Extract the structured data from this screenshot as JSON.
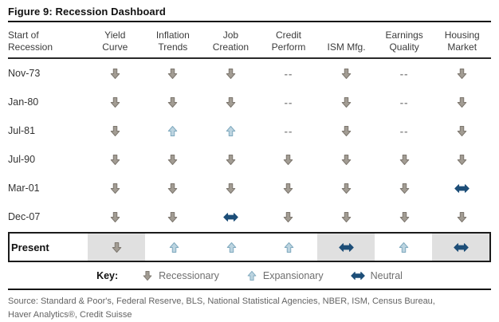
{
  "figure": {
    "title": "Figure 9: Recession Dashboard"
  },
  "table": {
    "columns": [
      {
        "line1": "Start of",
        "line2": "Recession"
      },
      {
        "line1": "Yield",
        "line2": "Curve"
      },
      {
        "line1": "Inflation",
        "line2": "Trends"
      },
      {
        "line1": "Job",
        "line2": "Creation"
      },
      {
        "line1": "Credit",
        "line2": "Perform"
      },
      {
        "line1": "",
        "line2": "ISM Mfg."
      },
      {
        "line1": "Earnings",
        "line2": "Quality"
      },
      {
        "line1": "Housing",
        "line2": "Market"
      }
    ],
    "dash_text": "--",
    "rows": [
      {
        "label": "Nov-73",
        "cells": [
          "down",
          "down",
          "down",
          "dash",
          "down",
          "dash",
          "down"
        ]
      },
      {
        "label": "Jan-80",
        "cells": [
          "down",
          "down",
          "down",
          "dash",
          "down",
          "dash",
          "down"
        ]
      },
      {
        "label": "Jul-81",
        "cells": [
          "down",
          "up",
          "up",
          "dash",
          "down",
          "dash",
          "down"
        ]
      },
      {
        "label": "Jul-90",
        "cells": [
          "down",
          "down",
          "down",
          "down",
          "down",
          "down",
          "down"
        ]
      },
      {
        "label": "Mar-01",
        "cells": [
          "down",
          "down",
          "down",
          "down",
          "down",
          "down",
          "neutral"
        ]
      },
      {
        "label": "Dec-07",
        "cells": [
          "down",
          "down",
          "neutral",
          "down",
          "down",
          "down",
          "down"
        ]
      }
    ],
    "present_row": {
      "label": "Present",
      "cells": [
        {
          "state": "down",
          "shaded": true
        },
        {
          "state": "up",
          "shaded": false
        },
        {
          "state": "up",
          "shaded": false
        },
        {
          "state": "up",
          "shaded": false
        },
        {
          "state": "neutral",
          "shaded": true
        },
        {
          "state": "up",
          "shaded": false
        },
        {
          "state": "neutral",
          "shaded": true
        }
      ]
    }
  },
  "key": {
    "label": "Key:",
    "items": [
      {
        "state": "down",
        "label": "Recessionary"
      },
      {
        "state": "up",
        "label": "Expansionary"
      },
      {
        "state": "neutral",
        "label": "Neutral"
      }
    ]
  },
  "source": {
    "line1": "Source: Standard & Poor's, Federal Reserve, BLS, National Statistical Agencies, NBER, ISM, Census Bureau,",
    "line2": "Haver Analytics®, Credit Suisse"
  },
  "icons": {
    "down": "down-arrow-icon",
    "up": "up-arrow-icon",
    "neutral": "left-right-arrow-icon"
  },
  "colors": {
    "recessionary_fill": "#a29c93",
    "recessionary_stroke": "#7d776f",
    "expansionary_fill": "#bcd4e0",
    "expansionary_stroke": "#7fa9be",
    "neutral_fill": "#1d4e78",
    "shaded_cell": "#e0e0e0"
  },
  "chart_data": {
    "type": "table",
    "title": "Figure 9: Recession Dashboard",
    "columns": [
      "Start of Recession",
      "Yield Curve",
      "Inflation Trends",
      "Job Creation",
      "Credit Perform",
      "ISM Mfg.",
      "Earnings Quality",
      "Housing Market"
    ],
    "rows": [
      [
        "Nov-73",
        "Recessionary",
        "Recessionary",
        "Recessionary",
        "--",
        "Recessionary",
        "--",
        "Recessionary"
      ],
      [
        "Jan-80",
        "Recessionary",
        "Recessionary",
        "Recessionary",
        "--",
        "Recessionary",
        "--",
        "Recessionary"
      ],
      [
        "Jul-81",
        "Recessionary",
        "Expansionary",
        "Expansionary",
        "--",
        "Recessionary",
        "--",
        "Recessionary"
      ],
      [
        "Jul-90",
        "Recessionary",
        "Recessionary",
        "Recessionary",
        "Recessionary",
        "Recessionary",
        "Recessionary",
        "Recessionary"
      ],
      [
        "Mar-01",
        "Recessionary",
        "Recessionary",
        "Recessionary",
        "Recessionary",
        "Recessionary",
        "Recessionary",
        "Neutral"
      ],
      [
        "Dec-07",
        "Recessionary",
        "Recessionary",
        "Neutral",
        "Recessionary",
        "Recessionary",
        "Recessionary",
        "Recessionary"
      ],
      [
        "Present",
        "Recessionary",
        "Expansionary",
        "Expansionary",
        "Expansionary",
        "Neutral",
        "Expansionary",
        "Neutral"
      ]
    ],
    "legend": [
      {
        "symbol": "down-arrow",
        "meaning": "Recessionary"
      },
      {
        "symbol": "up-arrow",
        "meaning": "Expansionary"
      },
      {
        "symbol": "left-right-arrow",
        "meaning": "Neutral"
      }
    ],
    "highlighted_present_cells": [
      "Yield Curve",
      "ISM Mfg.",
      "Housing Market"
    ]
  }
}
